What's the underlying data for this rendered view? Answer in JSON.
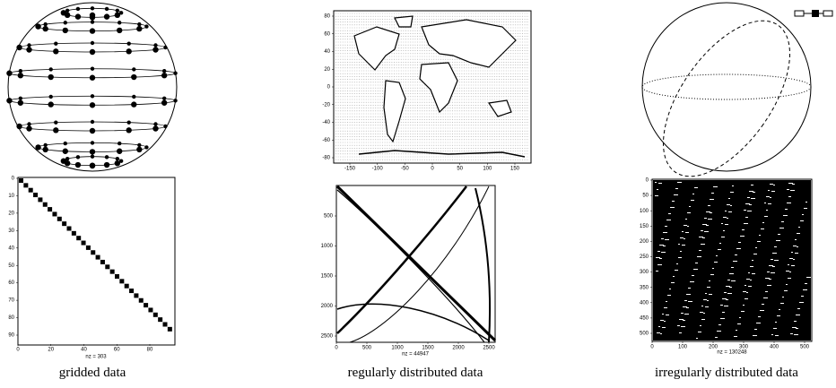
{
  "figure": {
    "columns": [
      {
        "caption": "gridded data",
        "spy": {
          "xticks": [
            0,
            20,
            40,
            60,
            80
          ],
          "yticks": [
            0,
            10,
            20,
            30,
            40,
            50,
            60,
            70,
            80,
            90
          ],
          "nz_label": "nz = 303"
        }
      },
      {
        "caption": "regularly distributed data",
        "map": {
          "xticks": [
            -150,
            -100,
            -50,
            0,
            50,
            100,
            150
          ],
          "yticks": [
            80,
            60,
            40,
            20,
            0,
            -20,
            -40,
            -60,
            -80
          ]
        },
        "spy": {
          "xticks": [
            0,
            500,
            1000,
            1500,
            2000,
            2500
          ],
          "yticks": [
            500,
            1000,
            1500,
            2000,
            2500
          ],
          "nz_label": "nz = 44947"
        }
      },
      {
        "caption": "irregularly distributed data",
        "spy": {
          "xticks": [
            0,
            100,
            200,
            300,
            400,
            500
          ],
          "yticks": [
            0,
            50,
            100,
            150,
            200,
            250,
            300,
            350,
            400,
            450,
            500
          ],
          "nz_label": "nz = 130248"
        }
      }
    ]
  }
}
